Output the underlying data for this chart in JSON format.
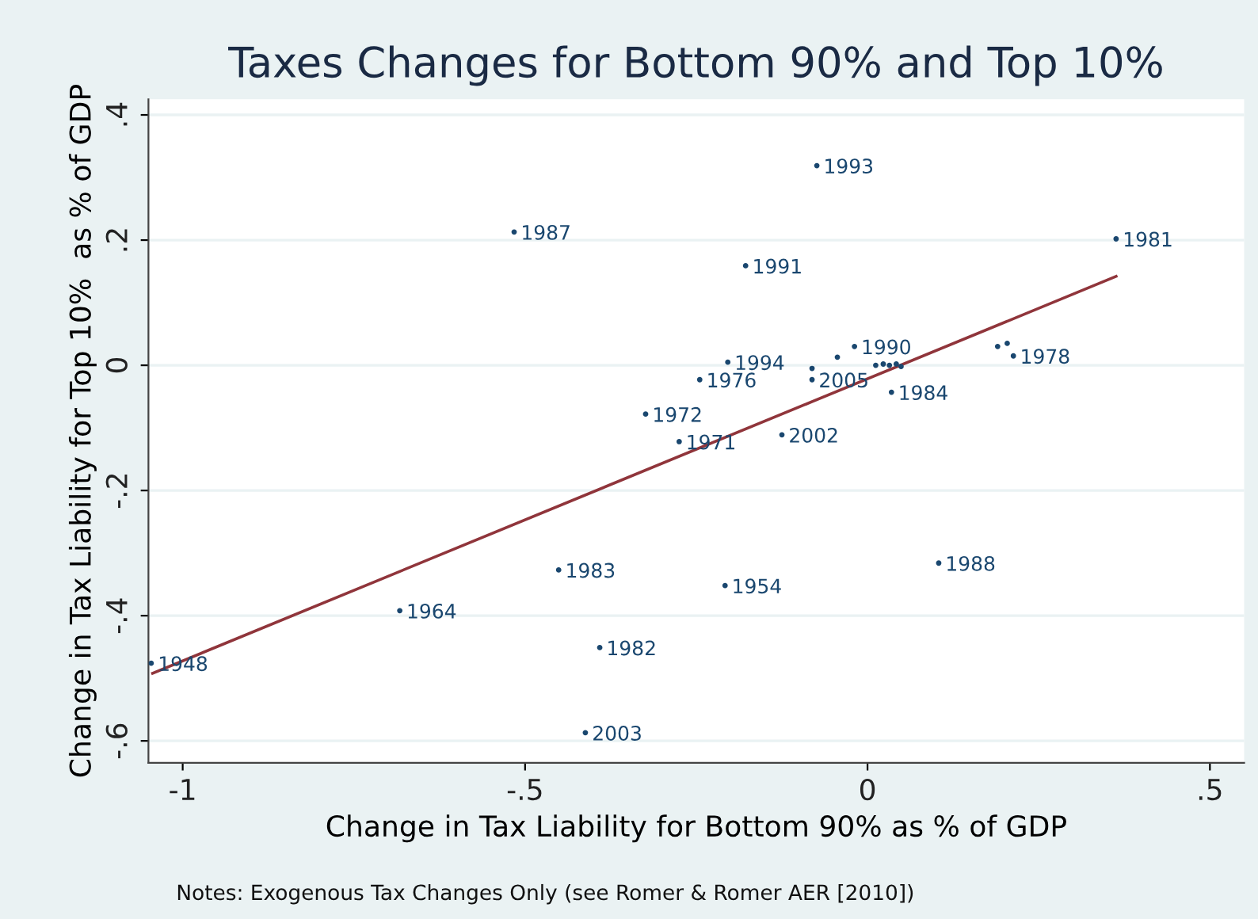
{
  "chart_data": {
    "type": "scatter",
    "title": "Taxes Changes for Bottom 90% and Top 10%",
    "xlabel": "Change in Tax Liability for Bottom 90% as % of GDP",
    "ylabel": "Change in Tax Liability for Top 10%  as % of GDP",
    "xlim": [
      -1.05,
      0.55
    ],
    "ylim": [
      -0.635,
      0.425
    ],
    "xticks": [
      {
        "value": -1,
        "label": "-1"
      },
      {
        "value": -0.5,
        "label": "-.5"
      },
      {
        "value": 0,
        "label": "0"
      },
      {
        "value": 0.5,
        "label": ".5"
      }
    ],
    "yticks": [
      {
        "value": -0.6,
        "label": "-.6"
      },
      {
        "value": -0.4,
        "label": "-.4"
      },
      {
        "value": -0.2,
        "label": "-.2"
      },
      {
        "value": 0,
        "label": "0"
      },
      {
        "value": 0.2,
        "label": ".2"
      },
      {
        "value": 0.4,
        "label": ".4"
      }
    ],
    "grid": "y",
    "legend": false,
    "series": [
      {
        "marker": "circle",
        "color": "#1a476f",
        "x": [
          -0.074,
          -0.516,
          -0.178,
          0.363,
          -0.019,
          -0.044,
          -0.081,
          -0.081,
          -0.204,
          -0.245,
          -0.324,
          -0.275,
          -0.125,
          0.035,
          0.19,
          0.204,
          0.213,
          0.104,
          -0.451,
          -0.208,
          -0.683,
          -0.391,
          -1.046,
          -0.412,
          0.012,
          0.023,
          0.032,
          0.042,
          0.049
        ],
        "values": [
          0.319,
          0.213,
          0.159,
          0.202,
          0.03,
          0.013,
          -0.005,
          -0.023,
          0.005,
          -0.023,
          -0.078,
          -0.122,
          -0.111,
          -0.043,
          0.03,
          0.035,
          0.015,
          -0.316,
          -0.327,
          -0.352,
          -0.392,
          -0.451,
          -0.476,
          -0.587,
          0.0,
          0.002,
          0.0,
          0.002,
          -0.002
        ]
      },
      {
        "type": "line",
        "marker": "none",
        "color": "#90353b",
        "x": [
          -1.044,
          0.363
        ],
        "values": [
          -0.492,
          0.142
        ]
      }
    ],
    "annotations": [
      {
        "text": "1993",
        "x": -0.074,
        "y": 0.319
      },
      {
        "text": "1987",
        "x": -0.516,
        "y": 0.213
      },
      {
        "text": "1991",
        "x": -0.178,
        "y": 0.159
      },
      {
        "text": "1981",
        "x": 0.363,
        "y": 0.202
      },
      {
        "text": "1990",
        "x": -0.019,
        "y": 0.03
      },
      {
        "text": "2005",
        "x": -0.081,
        "y": -0.023
      },
      {
        "text": "1994",
        "x": -0.204,
        "y": 0.005
      },
      {
        "text": "1976",
        "x": -0.245,
        "y": -0.023
      },
      {
        "text": "1972",
        "x": -0.324,
        "y": -0.078
      },
      {
        "text": "1971",
        "x": -0.275,
        "y": -0.122
      },
      {
        "text": "2002",
        "x": -0.125,
        "y": -0.111
      },
      {
        "text": "1984",
        "x": 0.035,
        "y": -0.043
      },
      {
        "text": "1978",
        "x": 0.213,
        "y": 0.015
      },
      {
        "text": "1988",
        "x": 0.104,
        "y": -0.316
      },
      {
        "text": "1983",
        "x": -0.451,
        "y": -0.327
      },
      {
        "text": "1954",
        "x": -0.208,
        "y": -0.352
      },
      {
        "text": "1964",
        "x": -0.683,
        "y": -0.392
      },
      {
        "text": "1982",
        "x": -0.391,
        "y": -0.451
      },
      {
        "text": "1948",
        "x": -1.046,
        "y": -0.476
      },
      {
        "text": "2003",
        "x": -0.412,
        "y": -0.587
      },
      "Notes: Exogenous Tax Changes Only (see Romer & Romer AER [2010])"
    ]
  }
}
